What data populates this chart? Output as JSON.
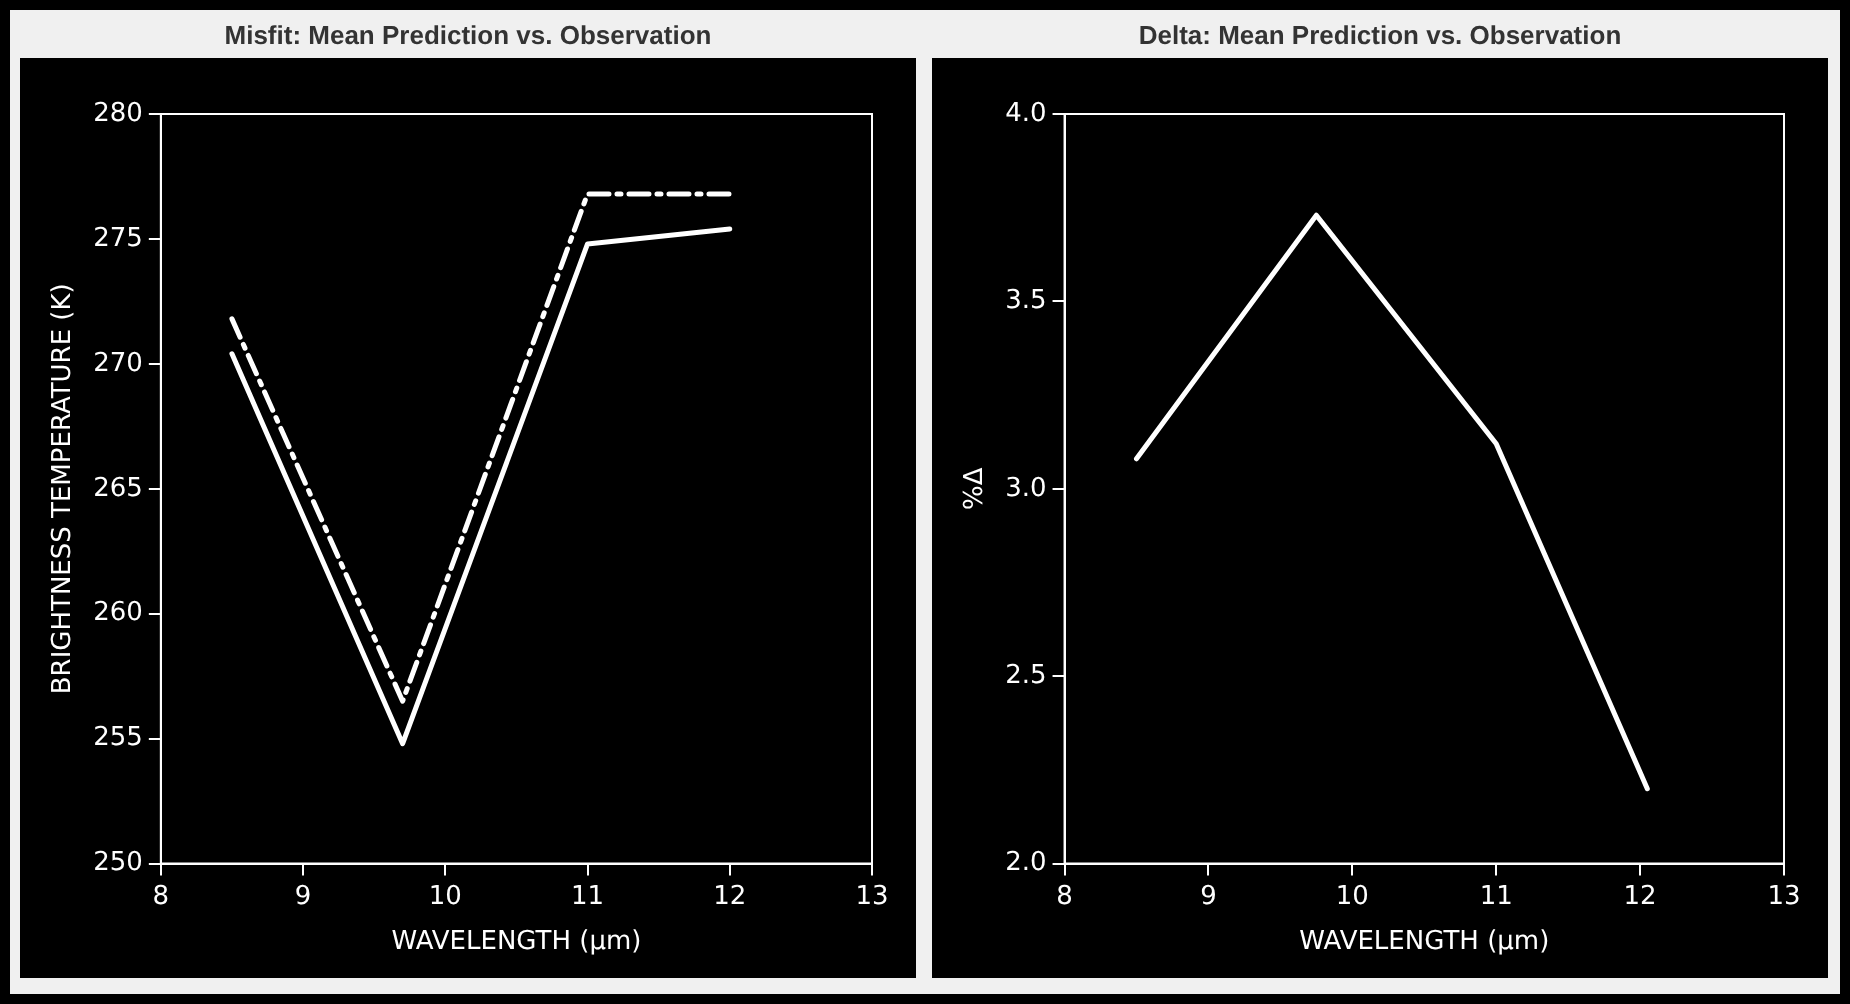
{
  "chart_data": [
    {
      "type": "line",
      "title": "Misfit: Mean Prediction vs. Observation",
      "xlabel": "WAVELENGTH (μm)",
      "ylabel": "BRIGHTNESS TEMPERATURE (K)",
      "x": [
        8.5,
        9.7,
        11.0,
        12.0
      ],
      "series": [
        {
          "color": "#ffffff",
          "values": [
            270.4,
            254.8,
            274.8,
            275.4
          ],
          "line_style": "solid"
        },
        {
          "color": "#ffffff",
          "values": [
            271.8,
            256.5,
            276.8,
            276.8
          ],
          "line_style": "dashed"
        }
      ],
      "xlim": [
        8,
        13
      ],
      "xticks": [
        8,
        9,
        10,
        11,
        12,
        13
      ],
      "ylim": [
        250,
        280
      ],
      "yticks": [
        250,
        255,
        260,
        265,
        270,
        275,
        280
      ],
      "grid": false,
      "legend": false
    },
    {
      "type": "line",
      "title": "Delta: Mean Prediction vs. Observation",
      "xlabel": "WAVELENGTH (μm)",
      "ylabel": "%Δ",
      "x": [
        8.5,
        9.75,
        11.0,
        12.05
      ],
      "series": [
        {
          "color": "#ffffff",
          "values": [
            3.08,
            3.73,
            3.12,
            2.2
          ],
          "line_style": "solid"
        }
      ],
      "xlim": [
        8,
        13
      ],
      "xticks": [
        8,
        9,
        10,
        11,
        12,
        13
      ],
      "ylim": [
        2.0,
        4.0
      ],
      "yticks": [
        {
          "value": 2.0,
          "label": "2.0"
        },
        {
          "value": 2.5,
          "label": "2.5"
        },
        {
          "value": 3.0,
          "label": "3.0"
        },
        {
          "value": 3.5,
          "label": "3.5"
        },
        {
          "value": 4.0,
          "label": "4.0"
        }
      ],
      "grid": false,
      "legend": false
    }
  ]
}
